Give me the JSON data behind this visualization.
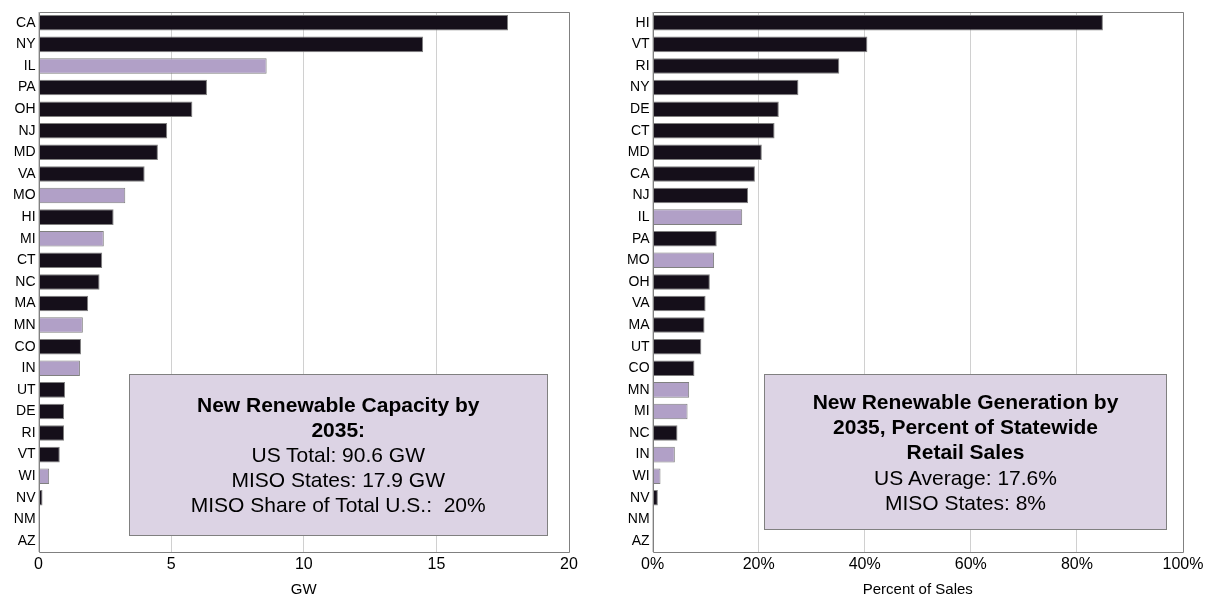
{
  "chart_data": [
    {
      "type": "bar",
      "orientation": "horizontal",
      "title": "New Renewable Capacity by 2035:",
      "xlabel": "GW",
      "categories": [
        "CA",
        "NY",
        "IL",
        "PA",
        "OH",
        "NJ",
        "MD",
        "VA",
        "MO",
        "HI",
        "MI",
        "CT",
        "NC",
        "MA",
        "MN",
        "CO",
        "IN",
        "UT",
        "DE",
        "RI",
        "VT",
        "WI",
        "NV",
        "NM",
        "AZ"
      ],
      "values": [
        17.7,
        14.5,
        8.6,
        6.35,
        5.8,
        4.85,
        4.5,
        4.0,
        3.27,
        2.83,
        2.46,
        2.4,
        2.3,
        1.87,
        1.67,
        1.6,
        1.56,
        1.0,
        0.96,
        0.96,
        0.8,
        0.4,
        0.15,
        0.05,
        0.03
      ],
      "colors": [
        "#150f1a",
        "#150f1a",
        "#b1a0c7",
        "#150f1a",
        "#150f1a",
        "#150f1a",
        "#150f1a",
        "#150f1a",
        "#b1a0c7",
        "#150f1a",
        "#b1a0c7",
        "#150f1a",
        "#150f1a",
        "#150f1a",
        "#b1a0c7",
        "#150f1a",
        "#b1a0c7",
        "#150f1a",
        "#150f1a",
        "#150f1a",
        "#150f1a",
        "#b1a0c7",
        "#150f1a",
        "#150f1a",
        "#150f1a"
      ],
      "xlim": [
        0,
        20
      ],
      "xticks": [
        0,
        5,
        10,
        15,
        20
      ],
      "grid": "x",
      "legend": false,
      "annotations": [
        "US Total: 90.6 GW",
        "MISO States: 17.9 GW",
        "MISO Share of Total U.S.:  20%"
      ]
    },
    {
      "type": "bar",
      "orientation": "horizontal",
      "title": "New Renewable Generation by 2035, Percent of Statewide Retail Sales",
      "xlabel": "Percent of Sales",
      "categories": [
        "HI",
        "VT",
        "RI",
        "NY",
        "DE",
        "CT",
        "MD",
        "CA",
        "NJ",
        "IL",
        "PA",
        "MO",
        "OH",
        "VA",
        "MA",
        "UT",
        "CO",
        "MN",
        "MI",
        "NC",
        "IN",
        "WI",
        "NV",
        "NM",
        "AZ"
      ],
      "values": [
        84.9,
        40.5,
        35.2,
        27.5,
        23.8,
        23.0,
        20.6,
        19.3,
        18.0,
        16.9,
        12.1,
        11.6,
        10.8,
        10.0,
        9.8,
        9.2,
        7.9,
        6.9,
        6.6,
        4.7,
        4.2,
        1.5,
        1.0,
        0.2,
        0.1
      ],
      "colors": [
        "#150f1a",
        "#150f1a",
        "#150f1a",
        "#150f1a",
        "#150f1a",
        "#150f1a",
        "#150f1a",
        "#150f1a",
        "#150f1a",
        "#b1a0c7",
        "#150f1a",
        "#b1a0c7",
        "#150f1a",
        "#150f1a",
        "#150f1a",
        "#150f1a",
        "#150f1a",
        "#b1a0c7",
        "#b1a0c7",
        "#150f1a",
        "#b1a0c7",
        "#b1a0c7",
        "#150f1a",
        "#150f1a",
        "#150f1a"
      ],
      "xlim": [
        0,
        100
      ],
      "xticks": [
        {
          "value": 0,
          "label": "0%"
        },
        {
          "value": 20,
          "label": "20%"
        },
        {
          "value": 40,
          "label": "40%"
        },
        {
          "value": 60,
          "label": "60%"
        },
        {
          "value": 80,
          "label": "80%"
        },
        {
          "value": 100,
          "label": "100%"
        }
      ],
      "grid": "x",
      "legend": false,
      "annotations": [
        "US Average: 17.6%",
        "MISO States: 8%"
      ]
    }
  ]
}
